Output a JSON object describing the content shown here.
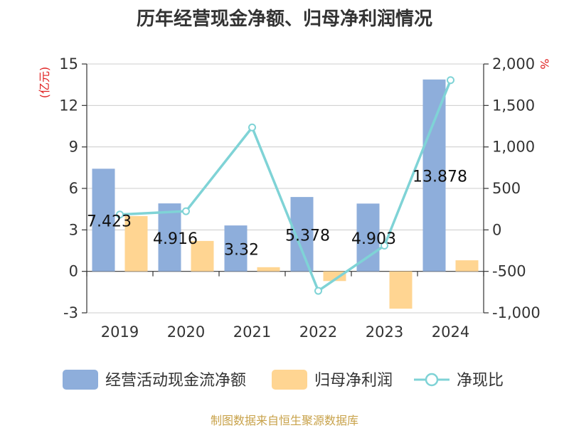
{
  "chart_data": {
    "type": "bar",
    "title": "历年经营现金净额、归母净利润情况",
    "categories": [
      "2019",
      "2020",
      "2021",
      "2022",
      "2023",
      "2024"
    ],
    "series": [
      {
        "name": "经营活动现金流净额",
        "kind": "bar",
        "axis": "left",
        "color": "#8eaedb",
        "values": [
          7.423,
          4.916,
          3.32,
          5.378,
          4.903,
          13.878
        ]
      },
      {
        "name": "归母净利润",
        "kind": "bar",
        "axis": "left",
        "color": "#ffd592",
        "values": [
          4.0,
          2.2,
          0.3,
          -0.7,
          -2.7,
          0.8
        ]
      },
      {
        "name": "净现比",
        "kind": "line",
        "axis": "right",
        "color": "#7fd3d6",
        "values": [
          185,
          225,
          1235,
          -735,
          -190,
          1805
        ]
      }
    ],
    "data_labels": [
      "7.423",
      "4.916",
      "3.32",
      "5.378",
      "4.903",
      "13.878"
    ],
    "left_axis": {
      "unit": "(亿元)",
      "ticks": [
        15,
        12,
        9,
        6,
        3,
        0,
        -3
      ],
      "tick_labels": [
        "15",
        "12",
        "9",
        "6",
        "3",
        "0",
        "-3"
      ],
      "range": [
        -3,
        15
      ]
    },
    "right_axis": {
      "unit": "%",
      "ticks": [
        2000,
        1500,
        1000,
        500,
        0,
        -500,
        -1000
      ],
      "tick_labels": [
        "2,000",
        "1,500",
        "1,000",
        "500",
        "0",
        "-500",
        "-1,000"
      ],
      "range": [
        -1000,
        2000
      ]
    },
    "legend_position": "bottom",
    "grid": true
  },
  "source_note": "制图数据来自恒生聚源数据库",
  "colors": {
    "title": "#333333",
    "axis_unit": "#e02020",
    "source": "#c8a24a",
    "grid": "#cccccc",
    "axis": "#333333"
  }
}
